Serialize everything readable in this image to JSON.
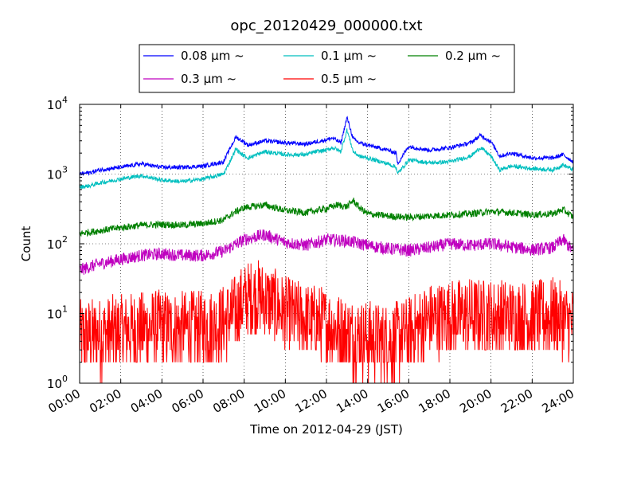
{
  "chart_data": {
    "type": "line",
    "title": "opc_20120429_000000.txt",
    "xlabel": "Time on 2012-04-29 (JST)",
    "ylabel": "Count",
    "x_unit": "hours",
    "xlim": [
      0,
      24
    ],
    "ylim": [
      1,
      10000
    ],
    "yscale": "log",
    "grid": true,
    "legend_position": "top-center, above plot",
    "x_ticks": [
      {
        "value": 0,
        "label": "00:00"
      },
      {
        "value": 2,
        "label": "02:00"
      },
      {
        "value": 4,
        "label": "04:00"
      },
      {
        "value": 6,
        "label": "06:00"
      },
      {
        "value": 8,
        "label": "08:00"
      },
      {
        "value": 10,
        "label": "10:00"
      },
      {
        "value": 12,
        "label": "12:00"
      },
      {
        "value": 14,
        "label": "14:00"
      },
      {
        "value": 16,
        "label": "16:00"
      },
      {
        "value": 18,
        "label": "18:00"
      },
      {
        "value": 20,
        "label": "20:00"
      },
      {
        "value": 22,
        "label": "22:00"
      },
      {
        "value": 24,
        "label": "24:00"
      }
    ],
    "y_ticks": [
      {
        "value": 1,
        "exp": "0"
      },
      {
        "value": 10,
        "exp": "1"
      },
      {
        "value": 100,
        "exp": "2"
      },
      {
        "value": 1000,
        "exp": "3"
      },
      {
        "value": 10000,
        "exp": "4"
      }
    ],
    "series": [
      {
        "name": "0.08 μm ~",
        "color": "#0000ff",
        "noise": 0.03,
        "x": [
          0,
          0.5,
          1,
          2,
          3,
          4,
          5,
          6,
          7,
          7.3,
          7.6,
          7.9,
          8.2,
          9,
          10,
          11,
          11.5,
          12,
          12.3,
          12.7,
          13.0,
          13.3,
          13.6,
          14,
          15,
          15.4,
          15.45,
          16,
          17,
          18,
          19,
          19.5,
          20,
          20.3,
          20.4,
          21,
          22,
          23,
          23.5,
          24
        ],
        "y": [
          1000,
          1050,
          1150,
          1250,
          1400,
          1250,
          1250,
          1300,
          1500,
          2300,
          3400,
          3000,
          2600,
          3000,
          2800,
          2700,
          2900,
          3100,
          3300,
          2800,
          6500,
          3200,
          2800,
          2600,
          2200,
          2000,
          1400,
          2500,
          2200,
          2400,
          2800,
          3600,
          2900,
          2100,
          1800,
          2000,
          1700,
          1700,
          1900,
          1500
        ]
      },
      {
        "name": "0.1 μm ~",
        "color": "#00bfbf",
        "noise": 0.03,
        "x": [
          0,
          0.5,
          1,
          2,
          3,
          4,
          5,
          6,
          7,
          7.3,
          7.6,
          7.9,
          8.2,
          9,
          10,
          11,
          11.5,
          12,
          12.3,
          12.7,
          13.0,
          13.3,
          13.6,
          14,
          15,
          15.4,
          15.45,
          16,
          17,
          18,
          19,
          19.5,
          20,
          20.3,
          20.4,
          21,
          22,
          23,
          23.5,
          24
        ],
        "y": [
          650,
          680,
          750,
          850,
          950,
          820,
          780,
          850,
          1000,
          1500,
          2300,
          1900,
          1700,
          2100,
          1900,
          1900,
          2100,
          2200,
          2400,
          2100,
          4300,
          2100,
          1800,
          1700,
          1400,
          1250,
          1000,
          1600,
          1450,
          1500,
          1800,
          2400,
          1800,
          1300,
          1150,
          1300,
          1200,
          1150,
          1350,
          1150
        ]
      },
      {
        "name": "0.2 μm ~",
        "color": "#008000",
        "noise": 0.05,
        "x": [
          0,
          1,
          2,
          3,
          4,
          5,
          6,
          7,
          7.5,
          8,
          9,
          10,
          11,
          12,
          12.5,
          13,
          13.3,
          13.6,
          14,
          15,
          16,
          17,
          18,
          19,
          20,
          21,
          22,
          23,
          23.5,
          24
        ],
        "y": [
          140,
          155,
          170,
          185,
          190,
          185,
          195,
          220,
          280,
          330,
          360,
          300,
          280,
          320,
          360,
          340,
          420,
          330,
          270,
          250,
          240,
          250,
          260,
          270,
          290,
          280,
          260,
          270,
          310,
          240
        ]
      },
      {
        "name": "0.3 μm ~",
        "color": "#bf00bf",
        "noise": 0.09,
        "x": [
          0,
          1,
          2,
          3,
          4,
          5,
          6,
          7,
          7.5,
          8,
          9,
          10,
          11,
          12,
          13,
          14,
          15,
          16,
          17,
          18,
          19,
          20,
          21,
          22,
          23,
          23.5,
          24
        ],
        "y": [
          42,
          52,
          60,
          68,
          72,
          68,
          68,
          78,
          95,
          115,
          135,
          105,
          95,
          115,
          110,
          95,
          85,
          80,
          88,
          100,
          95,
          100,
          90,
          82,
          88,
          115,
          78
        ]
      },
      {
        "name": "0.5 μm ~",
        "color": "#ff0000",
        "noise": 0.55,
        "x": [
          0,
          1,
          2,
          3,
          4,
          5,
          6,
          7,
          7.5,
          8,
          8.5,
          9,
          10,
          11,
          12,
          13,
          14,
          15,
          16,
          16.5,
          17,
          18,
          19,
          20,
          21,
          22,
          23,
          24
        ],
        "y": [
          4.5,
          5,
          5.5,
          6,
          6.5,
          6,
          6.2,
          7.5,
          10,
          15,
          18,
          16,
          10,
          8,
          7,
          5,
          4.5,
          4,
          5,
          6.5,
          8,
          9,
          9.5,
          9,
          9,
          8.5,
          9.5,
          7
        ]
      }
    ]
  }
}
